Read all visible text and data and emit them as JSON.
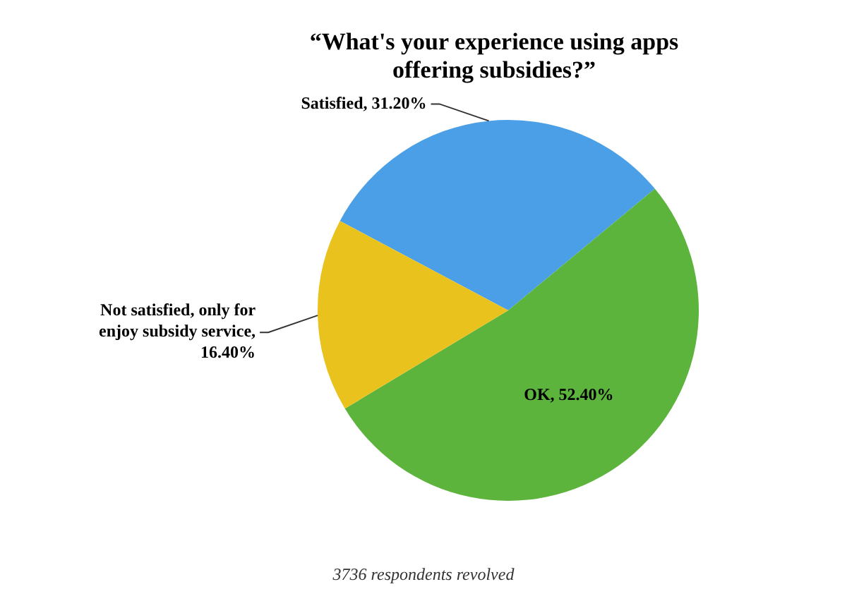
{
  "chart_data": {
    "type": "pie",
    "title": "“What's your experience using apps offering subsidies?”",
    "categories": [
      "Satisfied, 31.20%",
      "OK, 52.40%",
      "Not satisfied, only for enjoy subsidy service, 16.40%"
    ],
    "values": [
      31.2,
      52.4,
      16.4
    ],
    "colors": [
      "#4a9fe6",
      "#5cb43c",
      "#e9c21e"
    ],
    "legend": false,
    "annotations": [
      "3736 respondents revolved"
    ]
  }
}
